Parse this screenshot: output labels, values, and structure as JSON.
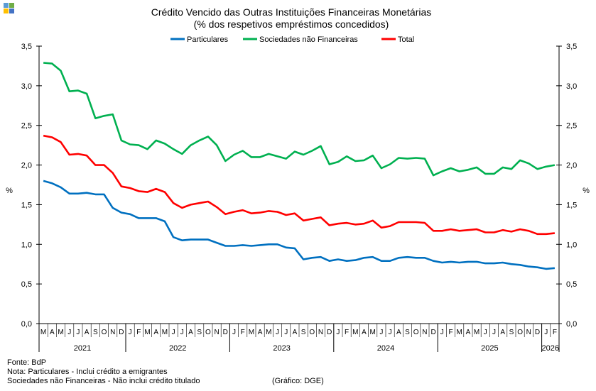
{
  "chart_data": {
    "type": "line",
    "title": "Crédito Vencido das Outras Instituições Financeiras Monetárias",
    "subtitle": "(% dos respetivos empréstimos concedidos)",
    "ylabel_left": "%",
    "ylabel_right": "%",
    "ylim": [
      0,
      3.5
    ],
    "yticks": [
      "0,0",
      "0,5",
      "1,0",
      "1,5",
      "2,0",
      "2,5",
      "3,0",
      "3,5"
    ],
    "months": [
      "M",
      "A",
      "M",
      "J",
      "J",
      "A",
      "S",
      "O",
      "N",
      "D",
      "J",
      "F",
      "M",
      "A",
      "M",
      "J",
      "J",
      "A",
      "S",
      "O",
      "N",
      "D",
      "J",
      "F",
      "M",
      "A",
      "M",
      "J",
      "J",
      "A",
      "S",
      "O",
      "N",
      "D",
      "J",
      "F",
      "M",
      "A",
      "M",
      "J",
      "J",
      "A",
      "S",
      "O",
      "N",
      "D",
      "J",
      "F",
      "M",
      "A",
      "M",
      "J",
      "J",
      "A",
      "S",
      "O",
      "N",
      "D",
      "J",
      "F"
    ],
    "years": [
      {
        "label": "2021",
        "months": 10
      },
      {
        "label": "2022",
        "months": 12
      },
      {
        "label": "2023",
        "months": 12
      },
      {
        "label": "2024",
        "months": 12
      },
      {
        "label": "2025",
        "months": 12
      },
      {
        "label": "2026",
        "months": 2
      }
    ],
    "legend_position": "top",
    "grid": false,
    "series": [
      {
        "name": "Particulares",
        "color": "#0070C0",
        "values": [
          1.8,
          1.77,
          1.72,
          1.64,
          1.64,
          1.65,
          1.63,
          1.63,
          1.46,
          1.4,
          1.38,
          1.33,
          1.33,
          1.33,
          1.29,
          1.09,
          1.05,
          1.06,
          1.06,
          1.06,
          1.02,
          0.98,
          0.98,
          0.99,
          0.98,
          0.99,
          1.0,
          1.0,
          0.96,
          0.95,
          0.81,
          0.83,
          0.84,
          0.79,
          0.81,
          0.79,
          0.8,
          0.83,
          0.84,
          0.79,
          0.79,
          0.83,
          0.84,
          0.83,
          0.83,
          0.79,
          0.77,
          0.78,
          0.77,
          0.78,
          0.78,
          0.76,
          0.76,
          0.77,
          0.75,
          0.74,
          0.72,
          0.71,
          0.69,
          0.7
        ]
      },
      {
        "name": "Sociedades não Financeiras",
        "color": "#00B050",
        "values": [
          3.29,
          3.28,
          3.19,
          2.93,
          2.94,
          2.9,
          2.59,
          2.62,
          2.64,
          2.31,
          2.26,
          2.25,
          2.2,
          2.31,
          2.27,
          2.2,
          2.14,
          2.25,
          2.31,
          2.36,
          2.25,
          2.05,
          2.13,
          2.18,
          2.1,
          2.1,
          2.14,
          2.11,
          2.08,
          2.17,
          2.13,
          2.18,
          2.24,
          2.01,
          2.04,
          2.11,
          2.05,
          2.06,
          2.12,
          1.96,
          2.01,
          2.09,
          2.08,
          2.09,
          2.08,
          1.87,
          1.92,
          1.96,
          1.92,
          1.94,
          1.97,
          1.89,
          1.89,
          1.97,
          1.95,
          2.06,
          2.02,
          1.95,
          1.98,
          2.0
        ]
      },
      {
        "name": "Total",
        "color": "#FF0000",
        "values": [
          2.37,
          2.35,
          2.29,
          2.13,
          2.14,
          2.12,
          2.0,
          2.0,
          1.9,
          1.73,
          1.71,
          1.67,
          1.66,
          1.7,
          1.66,
          1.52,
          1.46,
          1.5,
          1.52,
          1.54,
          1.47,
          1.38,
          1.41,
          1.43,
          1.39,
          1.4,
          1.42,
          1.41,
          1.37,
          1.39,
          1.3,
          1.32,
          1.34,
          1.24,
          1.26,
          1.27,
          1.25,
          1.26,
          1.3,
          1.21,
          1.23,
          1.28,
          1.28,
          1.28,
          1.27,
          1.17,
          1.17,
          1.19,
          1.17,
          1.18,
          1.19,
          1.15,
          1.15,
          1.18,
          1.16,
          1.19,
          1.17,
          1.13,
          1.13,
          1.14
        ]
      }
    ]
  },
  "notes": {
    "source": "Fonte: BdP",
    "note1": "Nota: Particulares - Inclui crédito a emigrantes",
    "note2": "Sociedades não Financeiras - Não inclui crédito titulado",
    "credit": "(Gráfico: DGE)"
  }
}
